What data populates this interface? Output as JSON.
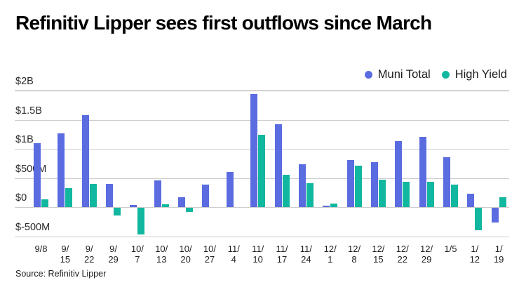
{
  "title": "Refinitiv Lipper sees first outflows since March",
  "source_label": "Source: Refinitiv Lipper",
  "colors": {
    "muni_total": "#5A6CE0",
    "high_yield": "#11B79E",
    "gridline": "#cccccc",
    "gridline_top": "#9b9b9b",
    "title_text": "#000000",
    "axis_text": "#2b2b2b",
    "background": "#ffffff"
  },
  "legend": {
    "position": "top-right",
    "items": [
      {
        "label": "Muni Total",
        "color": "#5A6CE0"
      },
      {
        "label": "High Yield",
        "color": "#11B79E"
      }
    ]
  },
  "chart_data": {
    "type": "bar",
    "title": "Refinitiv Lipper sees first outflows since March",
    "unit": "USD millions",
    "categories": [
      "9/8",
      "9/15",
      "9/22",
      "9/29",
      "10/7",
      "10/13",
      "10/20",
      "10/27",
      "11/4",
      "11/10",
      "11/17",
      "11/24",
      "12/1",
      "12/8",
      "12/15",
      "12/22",
      "12/29",
      "1/5",
      "1/12",
      "1/19"
    ],
    "categories_display": [
      [
        "9/8"
      ],
      [
        "9/",
        "15"
      ],
      [
        "9/",
        "22"
      ],
      [
        "9/",
        "29"
      ],
      [
        "10/",
        "7"
      ],
      [
        "10/",
        "13"
      ],
      [
        "10/",
        "20"
      ],
      [
        "10/",
        "27"
      ],
      [
        "11/",
        "4"
      ],
      [
        "11/",
        "10"
      ],
      [
        "11/",
        "17"
      ],
      [
        "11/",
        "24"
      ],
      [
        "12/",
        "1"
      ],
      [
        "12/",
        "8"
      ],
      [
        "12/",
        "15"
      ],
      [
        "12/",
        "22"
      ],
      [
        "12/",
        "29"
      ],
      [
        "1/5"
      ],
      [
        "1/",
        "12"
      ],
      [
        "1/",
        "19"
      ]
    ],
    "series": [
      {
        "name": "Muni Total",
        "color": "#5A6CE0",
        "values": [
          1100,
          1270,
          1580,
          400,
          40,
          460,
          170,
          390,
          600,
          1940,
          1420,
          730,
          30,
          810,
          770,
          1130,
          1210,
          850,
          230,
          -250
        ]
      },
      {
        "name": "High Yield",
        "color": "#11B79E",
        "values": [
          130,
          330,
          400,
          -130,
          -460,
          50,
          -70,
          0,
          0,
          1240,
          550,
          410,
          60,
          710,
          470,
          440,
          440,
          390,
          -380,
          170
        ]
      }
    ],
    "y_axis": {
      "tick_labels": [
        "$2B",
        "$1.5B",
        "$1B",
        "$500M",
        "$0",
        "$-500M"
      ],
      "tick_values_millions": [
        2000,
        1500,
        1000,
        500,
        0,
        -500
      ]
    },
    "ylim_millions": [
      -500,
      2000
    ],
    "grid": true,
    "legend_position": "top-right"
  }
}
